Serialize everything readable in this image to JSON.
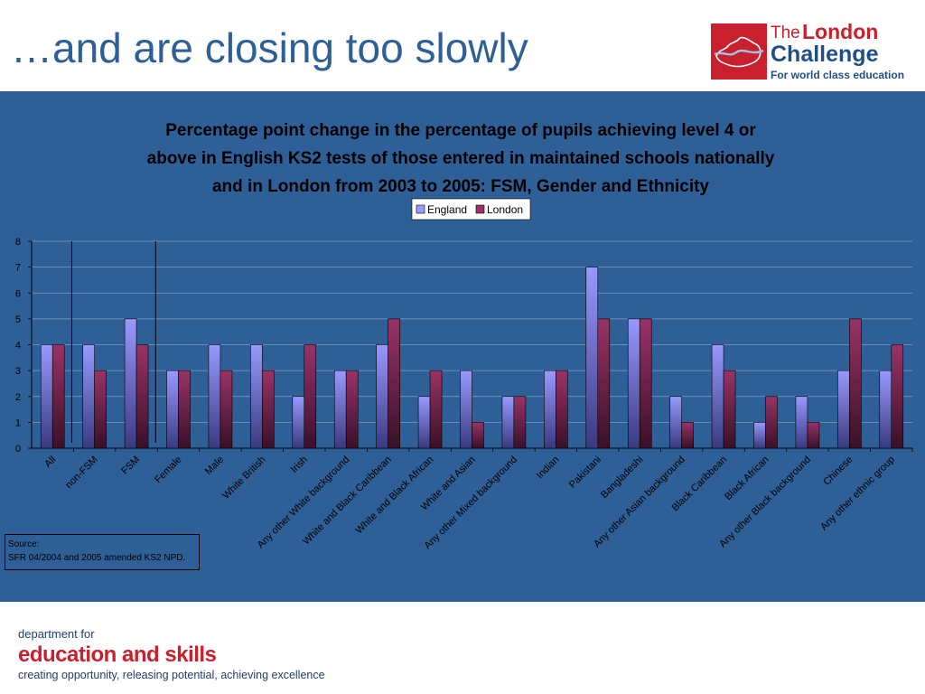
{
  "slide": {
    "title": "…and are closing too slowly"
  },
  "logo": {
    "the": "The",
    "london": "London",
    "challenge": "Challenge",
    "tagline": "For world class education",
    "colors": {
      "red": "#c8202c",
      "blue": "#1f4f8a"
    }
  },
  "source": {
    "label": "Source:",
    "text": "SFR 04/2004 and 2005 amended KS2 NPD."
  },
  "footer": {
    "line1": "department for",
    "line2": "education and skills",
    "line3": "creating opportunity, releasing potential, achieving excellence"
  },
  "chart_data": {
    "type": "bar",
    "title_lines": [
      "Percentage point change in the percentage of pupils achieving level 4 or",
      "above in English KS2 tests of those entered in maintained schools nationally",
      "and in London from 2003 to 2005: FSM, Gender and Ethnicity"
    ],
    "categories": [
      "All",
      "non-FSM",
      "FSM",
      "Female",
      "Male",
      "White British",
      "Irish",
      "Any other White background",
      "White and Black Caribbean",
      "White and Black African",
      "White and Asian",
      "Any other Mixed background",
      "Indian",
      "Pakistani",
      "Bangladeshi",
      "Any other Asian background",
      "Black Caribbean",
      "Black African",
      "Any other Black background",
      "Chinese",
      "Any other ethnic group"
    ],
    "series": [
      {
        "name": "England",
        "color": "#9999ff",
        "values": [
          4,
          4,
          5,
          3,
          4,
          4,
          2,
          3,
          4,
          2,
          3,
          2,
          3,
          7,
          5,
          2,
          4,
          1,
          2,
          3,
          3
        ]
      },
      {
        "name": "London",
        "color": "#993366",
        "values": [
          4,
          3,
          4,
          3,
          3,
          3,
          4,
          3,
          5,
          3,
          1,
          2,
          3,
          5,
          5,
          1,
          3,
          2,
          1,
          5,
          4
        ]
      }
    ],
    "y_ticks": [
      "0",
      "1",
      "2",
      "3",
      "4",
      "5",
      "6",
      "7",
      "8"
    ],
    "ylim": [
      0,
      8
    ],
    "grid": true,
    "legend_position": "top-center",
    "separator_lines_after_categories": [
      "All",
      "FSM"
    ]
  }
}
